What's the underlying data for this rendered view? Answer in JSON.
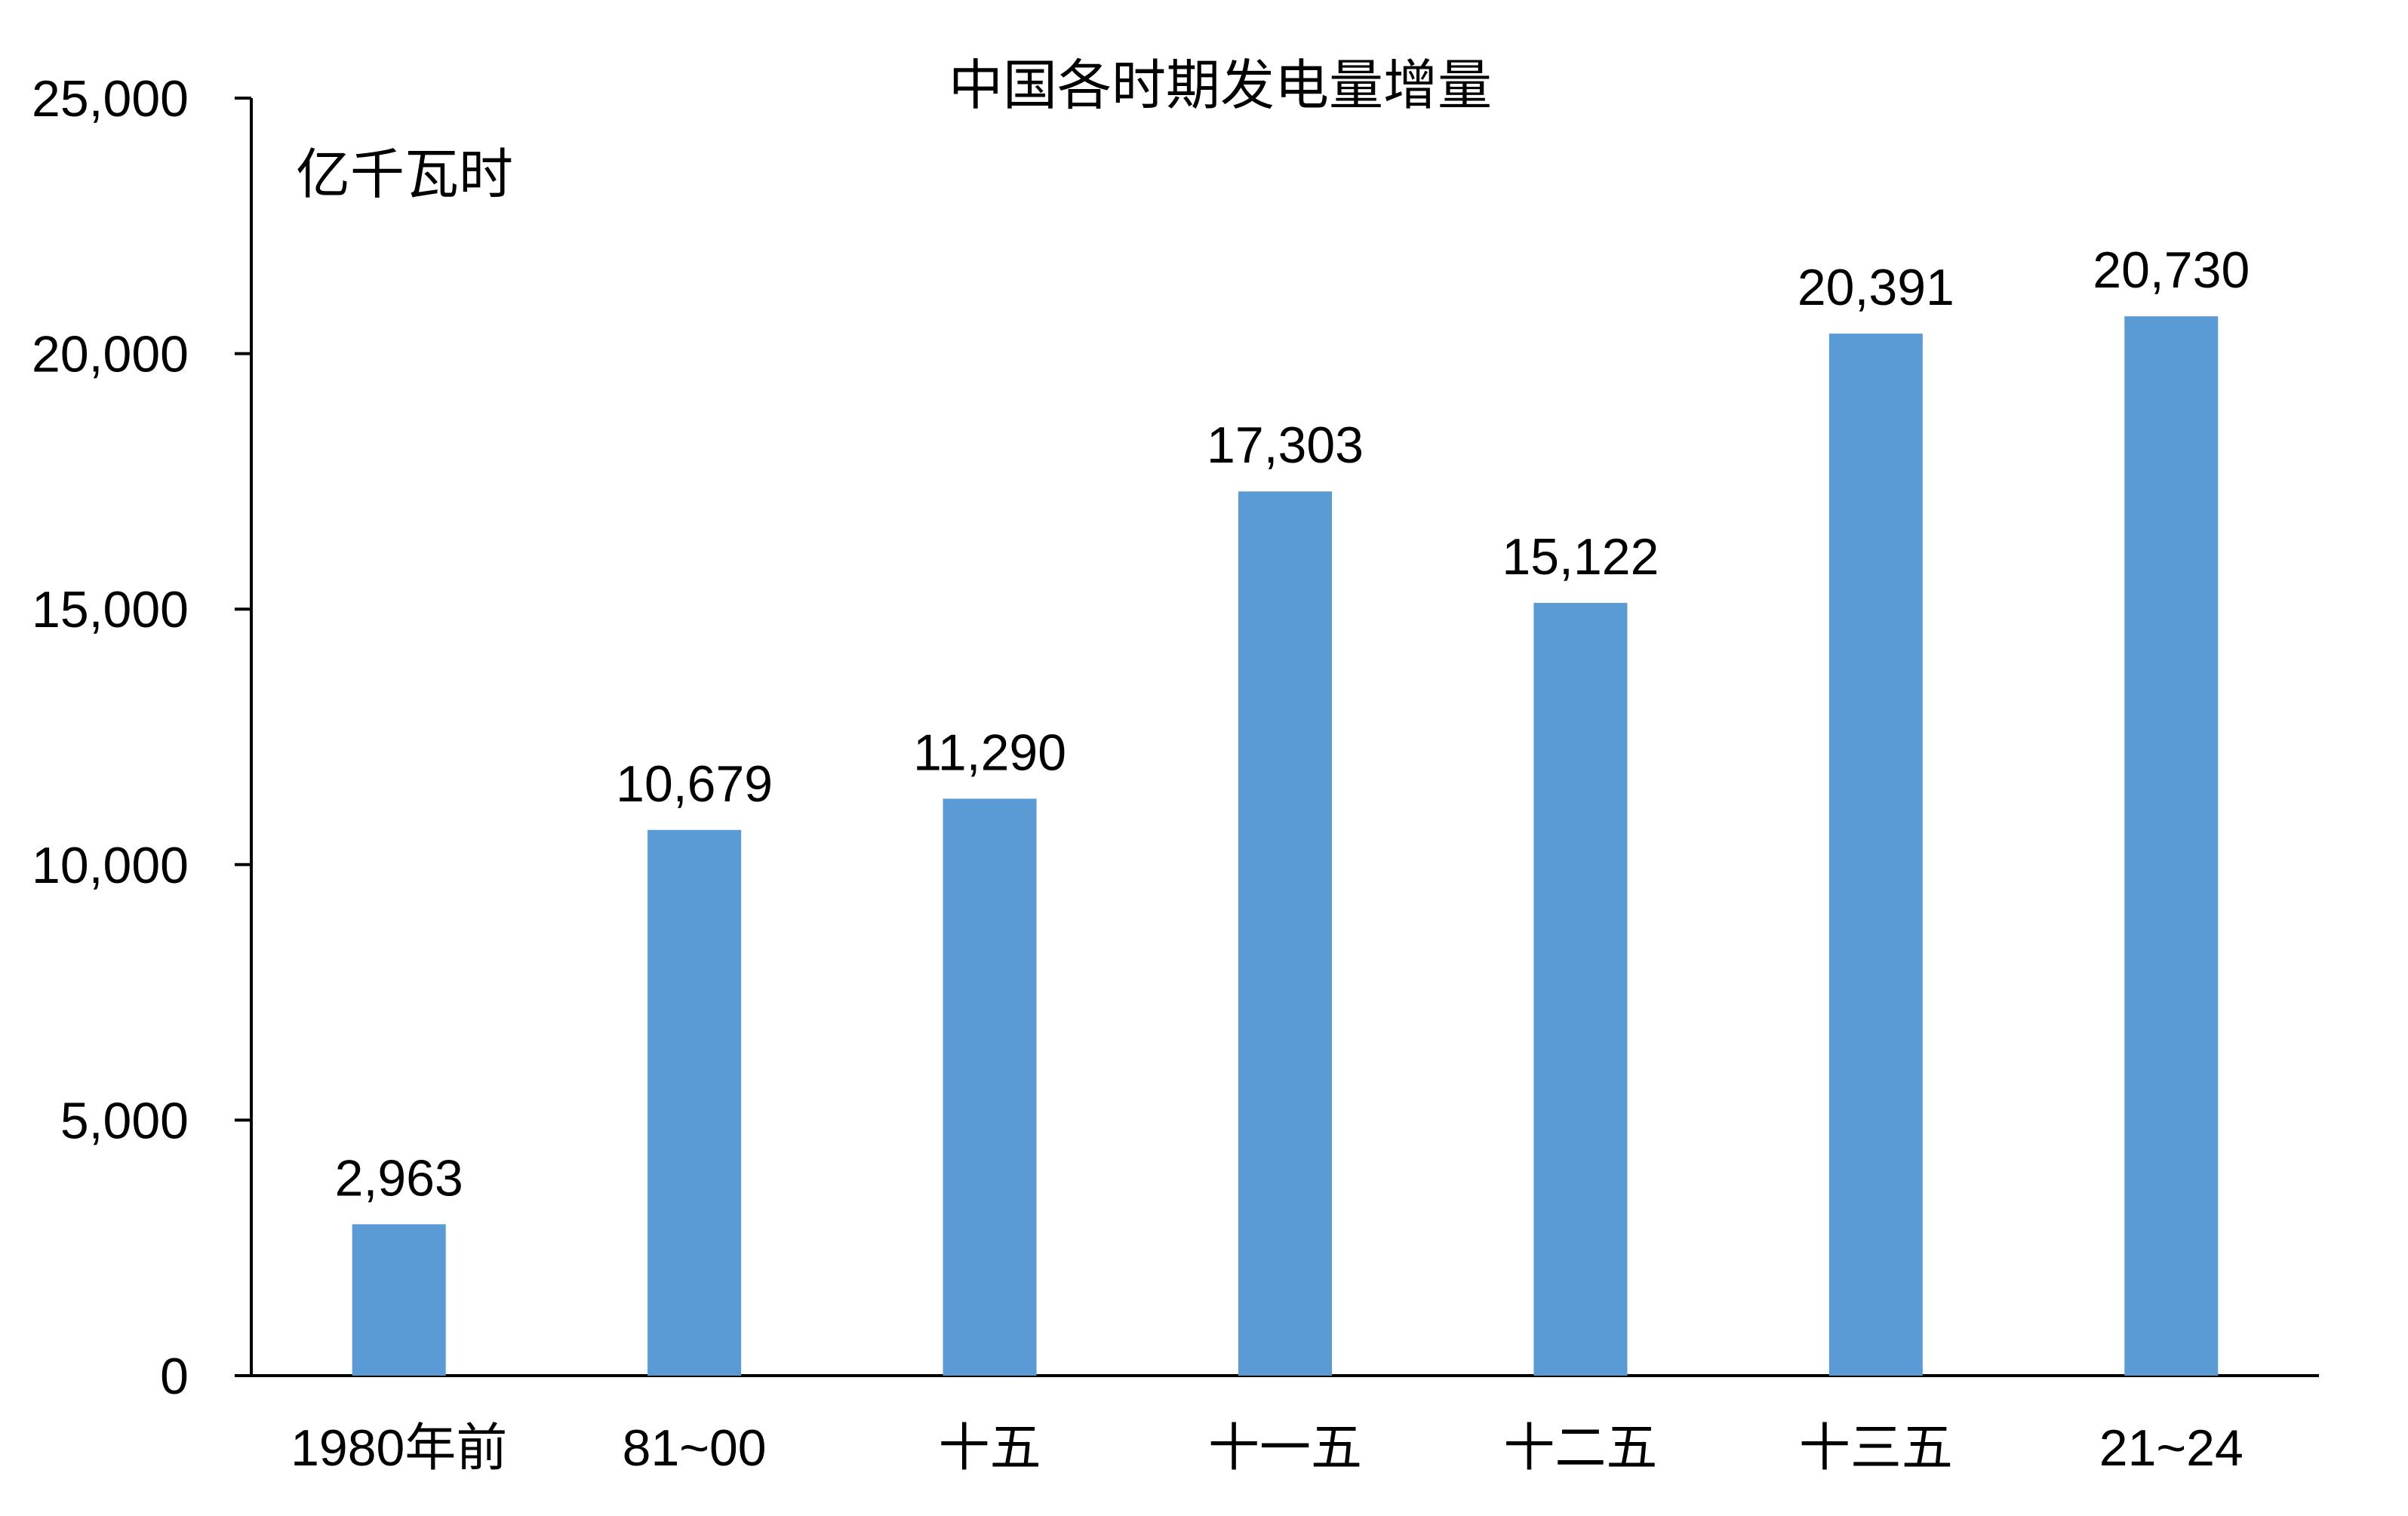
{
  "chart_data": {
    "type": "bar",
    "title": "中国各时期发电量增量",
    "ylabel": "亿千瓦时",
    "xlabel": "",
    "categories": [
      "1980年前",
      "81~00",
      "十五",
      "十一五",
      "十二五",
      "十三五",
      "21~24"
    ],
    "values": [
      2963,
      10679,
      11290,
      17303,
      15122,
      20391,
      20730
    ],
    "value_labels": [
      "2,963",
      "10,679",
      "11,290",
      "17,303",
      "15,122",
      "20,391",
      "20,730"
    ],
    "ylim": [
      0,
      25000
    ],
    "yticks": [
      0,
      5000,
      10000,
      15000,
      20000,
      25000
    ],
    "ytick_labels": [
      "0",
      "5,000",
      "10,000",
      "15,000",
      "20,000",
      "25,000"
    ],
    "grid": false,
    "legend": "none",
    "bar_color": "#5B9BD5",
    "axis_color": "#000000"
  }
}
